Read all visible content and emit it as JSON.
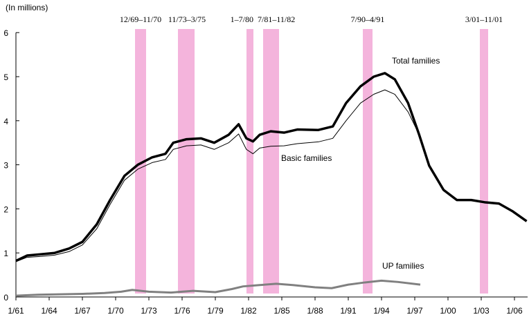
{
  "chart_data": {
    "type": "line",
    "ylabel": "(In millions)",
    "ylim": [
      0,
      6
    ],
    "yticks": [
      "0",
      "1",
      "2",
      "3",
      "4",
      "5",
      "6"
    ],
    "xticks": [
      "1/61",
      "1/64",
      "1/67",
      "1/70",
      "1/73",
      "1/76",
      "1/79",
      "1/82",
      "1/85",
      "1/88",
      "1/91",
      "1/94",
      "1/97",
      "1/00",
      "1/03",
      "1/06"
    ],
    "grid": false,
    "recessions": [
      "12/69–11/70",
      "11/73–3/75",
      "1–7/80",
      "7/81–11/82",
      "7/90–4/91",
      "3/01–11/01"
    ],
    "recession_color": "#f4b4dc",
    "series": [
      {
        "name": "Total families",
        "color": "#000000",
        "points": [
          [
            1961,
            0.82
          ],
          [
            1962,
            0.94
          ],
          [
            1963.3,
            0.97
          ],
          [
            1964.5,
            1.0
          ],
          [
            1965.8,
            1.1
          ],
          [
            1967,
            1.25
          ],
          [
            1968.3,
            1.65
          ],
          [
            1969.5,
            2.2
          ],
          [
            1970.8,
            2.75
          ],
          [
            1972,
            3.0
          ],
          [
            1973.3,
            3.17
          ],
          [
            1974.5,
            3.25
          ],
          [
            1975.2,
            3.5
          ],
          [
            1976.4,
            3.58
          ],
          [
            1977.7,
            3.6
          ],
          [
            1978.9,
            3.5
          ],
          [
            1980.2,
            3.68
          ],
          [
            1981.1,
            3.92
          ],
          [
            1981.8,
            3.6
          ],
          [
            1982.4,
            3.53
          ],
          [
            1983,
            3.68
          ],
          [
            1984,
            3.76
          ],
          [
            1985.2,
            3.73
          ],
          [
            1986.4,
            3.8
          ],
          [
            1988.3,
            3.79
          ],
          [
            1989.6,
            3.87
          ],
          [
            1990.8,
            4.4
          ],
          [
            1992.1,
            4.78
          ],
          [
            1993.3,
            5.0
          ],
          [
            1994.3,
            5.08
          ],
          [
            1995.2,
            4.94
          ],
          [
            1996.4,
            4.4
          ],
          [
            1997.4,
            3.68
          ],
          [
            1998.3,
            2.98
          ],
          [
            1999.6,
            2.43
          ],
          [
            2000.8,
            2.2
          ],
          [
            2002.1,
            2.2
          ],
          [
            2003.3,
            2.15
          ],
          [
            2004.6,
            2.12
          ],
          [
            2005.8,
            1.95
          ],
          [
            2007.1,
            1.72
          ]
        ]
      },
      {
        "name": "Basic families",
        "color": "#000000",
        "points": [
          [
            1961,
            0.8
          ],
          [
            1962,
            0.9
          ],
          [
            1963.3,
            0.92
          ],
          [
            1964.5,
            0.95
          ],
          [
            1965.8,
            1.03
          ],
          [
            1967,
            1.18
          ],
          [
            1968.3,
            1.55
          ],
          [
            1969.5,
            2.1
          ],
          [
            1970.8,
            2.65
          ],
          [
            1972,
            2.9
          ],
          [
            1973.3,
            3.05
          ],
          [
            1974.5,
            3.12
          ],
          [
            1975.2,
            3.35
          ],
          [
            1976.4,
            3.43
          ],
          [
            1977.7,
            3.45
          ],
          [
            1978.9,
            3.35
          ],
          [
            1980.2,
            3.5
          ],
          [
            1981.1,
            3.7
          ],
          [
            1981.8,
            3.35
          ],
          [
            1982.4,
            3.25
          ],
          [
            1983,
            3.38
          ],
          [
            1984,
            3.42
          ],
          [
            1985.2,
            3.43
          ],
          [
            1986.4,
            3.48
          ],
          [
            1988.3,
            3.52
          ],
          [
            1989.6,
            3.6
          ],
          [
            1990.8,
            4.0
          ],
          [
            1992.1,
            4.4
          ],
          [
            1993.3,
            4.6
          ],
          [
            1994.3,
            4.7
          ],
          [
            1995.2,
            4.6
          ],
          [
            1996.4,
            4.2
          ],
          [
            1997.4,
            3.68
          ]
        ]
      },
      {
        "name": "UP families",
        "color": "#808080",
        "points": [
          [
            1961,
            0.03
          ],
          [
            1963,
            0.05
          ],
          [
            1965,
            0.06
          ],
          [
            1967,
            0.07
          ],
          [
            1969,
            0.09
          ],
          [
            1970.5,
            0.12
          ],
          [
            1971.5,
            0.16
          ],
          [
            1973,
            0.12
          ],
          [
            1975,
            0.1
          ],
          [
            1977,
            0.14
          ],
          [
            1979,
            0.11
          ],
          [
            1980.5,
            0.18
          ],
          [
            1981.5,
            0.24
          ],
          [
            1983,
            0.27
          ],
          [
            1984.5,
            0.3
          ],
          [
            1986,
            0.27
          ],
          [
            1988,
            0.22
          ],
          [
            1989.5,
            0.2
          ],
          [
            1991,
            0.28
          ],
          [
            1992.5,
            0.33
          ],
          [
            1994,
            0.37
          ],
          [
            1995.5,
            0.34
          ],
          [
            1997.5,
            0.28
          ]
        ]
      }
    ]
  }
}
